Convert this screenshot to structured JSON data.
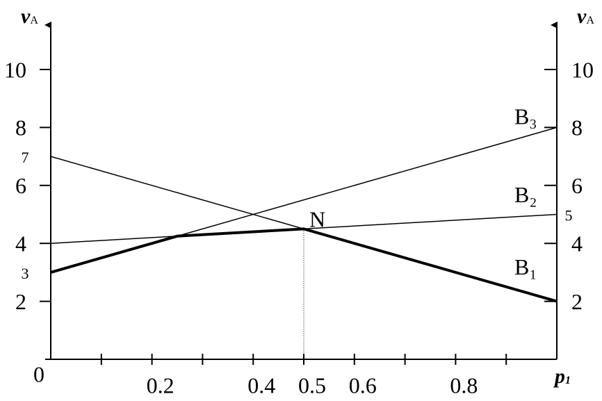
{
  "chart_data": {
    "type": "line",
    "x_label": {
      "main": "p",
      "sub": "1"
    },
    "y_label": {
      "main": "v",
      "sub": "A"
    },
    "y2_label": {
      "main": "v",
      "sub": "A"
    },
    "x": [
      0,
      1
    ],
    "series": [
      {
        "name": "B₁",
        "color": "#000000",
        "values": [
          7,
          2
        ]
      },
      {
        "name": "B₂",
        "color": "#000000",
        "values": [
          4,
          5
        ]
      },
      {
        "name": "B₃",
        "color": "#000000",
        "values": [
          3,
          8
        ]
      }
    ],
    "envelope": {
      "x": [
        0,
        0.25,
        0.5,
        1
      ],
      "values": [
        3,
        4.25,
        4.5,
        2
      ]
    },
    "point": {
      "label": "N",
      "x": 0.5,
      "y": 4.5
    },
    "annotations": [
      {
        "x": 0,
        "y": 7
      },
      {
        "x": 0,
        "y": 3
      },
      {
        "x": 1,
        "y": 5
      }
    ],
    "xlim": [
      0,
      1
    ],
    "ylim": [
      0,
      11
    ],
    "xticks": [
      0.2,
      0.4,
      0.5,
      0.6,
      0.8
    ],
    "xminor": [
      0.1,
      0.3,
      0.7,
      0.9
    ],
    "yticks": [
      2,
      4,
      6,
      8,
      10
    ],
    "y2lim": [
      0,
      11
    ],
    "y2ticks": [
      2,
      4,
      6,
      8,
      10
    ]
  }
}
